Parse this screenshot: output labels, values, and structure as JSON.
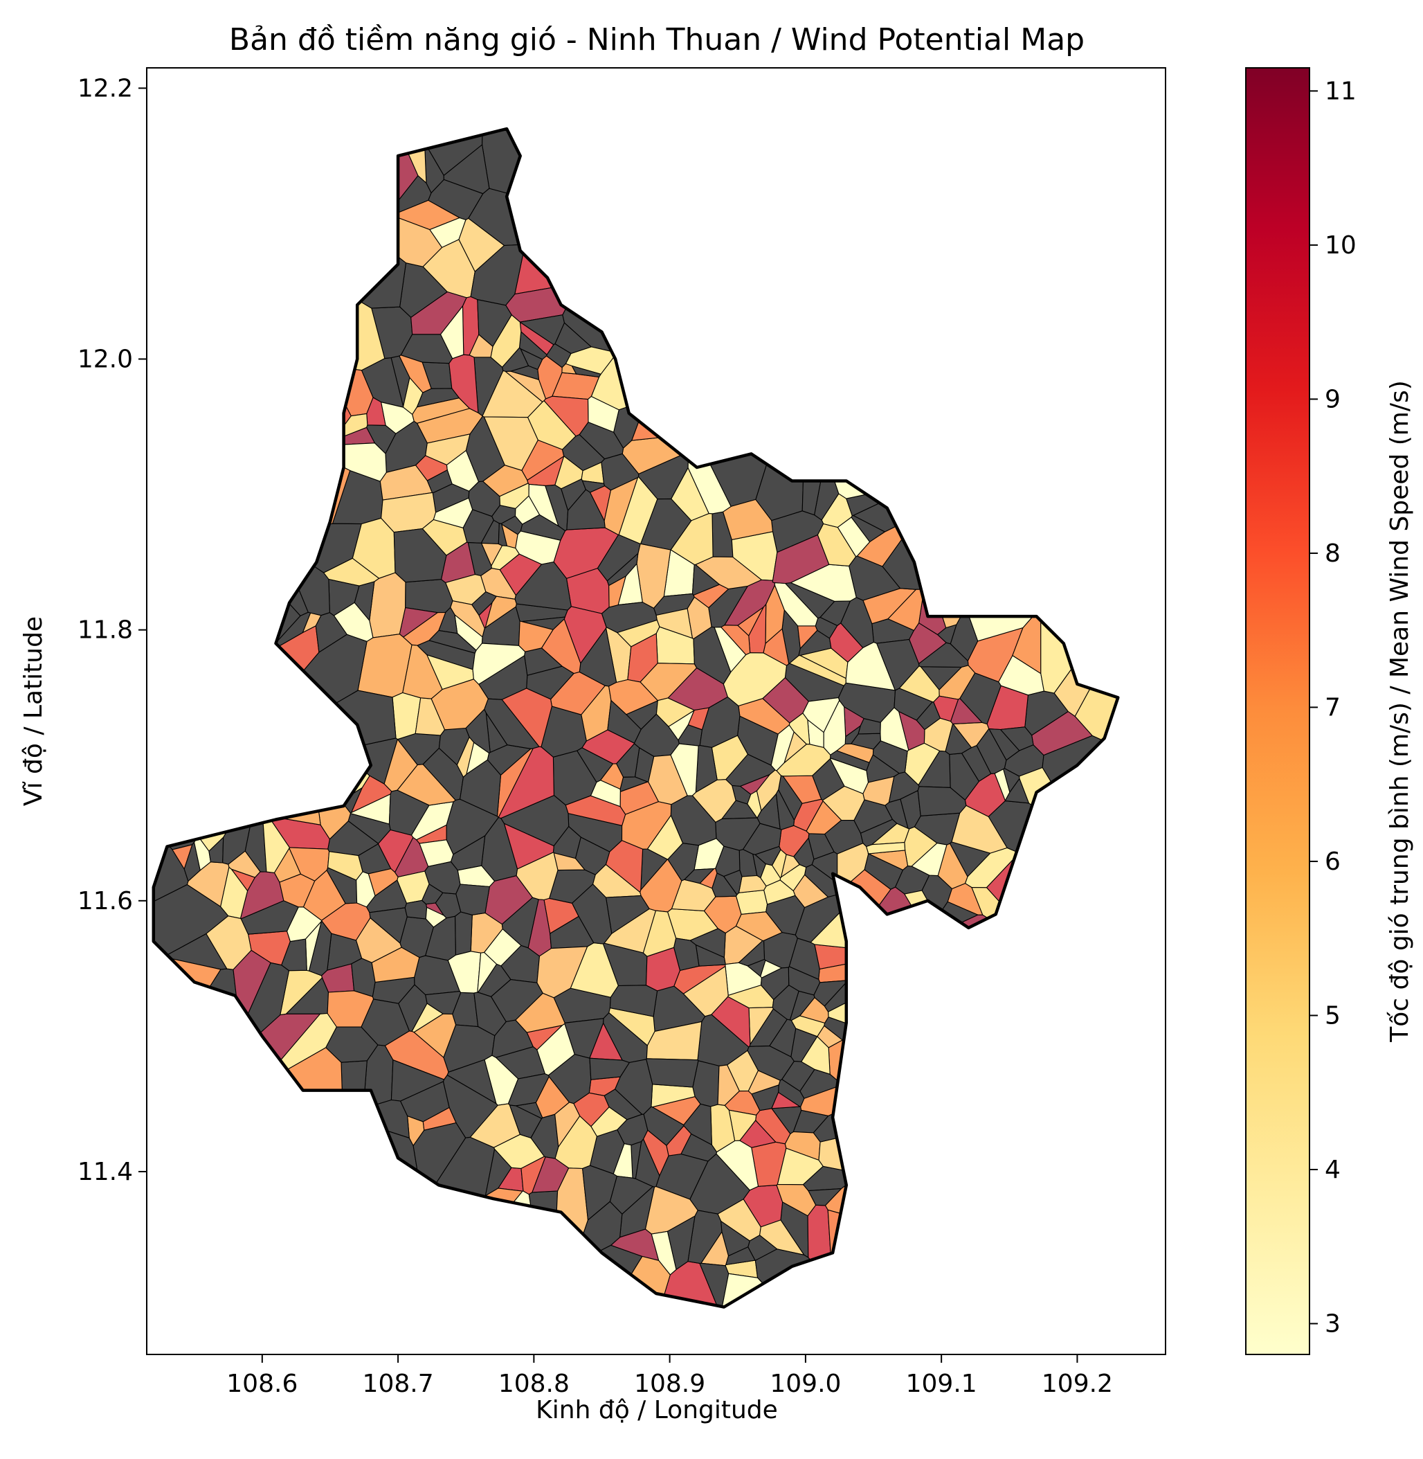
{
  "title": "Bản đồ tiềm năng gió - Ninh Thuan / Wind Potential Map",
  "axes": {
    "xlabel": "Kinh độ / Longitude",
    "ylabel": "Vĩ độ / Latitude",
    "xlim": [
      108.515,
      109.265
    ],
    "ylim": [
      11.265,
      12.215
    ],
    "xticks": [
      "108.6",
      "108.7",
      "108.8",
      "108.9",
      "109.0",
      "109.1",
      "109.2"
    ],
    "yticks": [
      "11.4",
      "11.6",
      "11.8",
      "12.0",
      "12.2"
    ]
  },
  "colorbar": {
    "label": "Tốc độ gió trung bình (m/s) / Mean Wind Speed (m/s)",
    "ticks": [
      "3",
      "4",
      "5",
      "6",
      "7",
      "8",
      "9",
      "10",
      "11"
    ],
    "range": [
      2.8,
      11.15
    ],
    "colormap": "YlOrRd",
    "colors": [
      "#ffffcc",
      "#ffeda0",
      "#fed976",
      "#feb24c",
      "#fd8d3c",
      "#fc4e2a",
      "#e31a1c",
      "#bd0026",
      "#800026"
    ]
  },
  "chart_data": {
    "type": "heatmap",
    "title": "Bản đồ tiềm năng gió - Ninh Thuan / Wind Potential Map",
    "xlabel": "Kinh độ / Longitude",
    "ylabel": "Vĩ độ / Latitude",
    "x_range": [
      108.515,
      109.265
    ],
    "y_range": [
      11.265,
      12.215
    ],
    "value_label": "Tốc độ gió trung bình (m/s) / Mean Wind Speed (m/s)",
    "value_range": [
      2.8,
      11.15
    ],
    "no_data_color": "#4a4a4a",
    "region_outline": [
      [
        108.7,
        12.15
      ],
      [
        108.74,
        12.16
      ],
      [
        108.78,
        12.17
      ],
      [
        108.79,
        12.15
      ],
      [
        108.78,
        12.12
      ],
      [
        108.79,
        12.08
      ],
      [
        108.81,
        12.06
      ],
      [
        108.82,
        12.04
      ],
      [
        108.85,
        12.02
      ],
      [
        108.86,
        12.0
      ],
      [
        108.87,
        11.96
      ],
      [
        108.92,
        11.92
      ],
      [
        108.96,
        11.93
      ],
      [
        108.99,
        11.91
      ],
      [
        109.03,
        11.91
      ],
      [
        109.06,
        11.89
      ],
      [
        109.08,
        11.85
      ],
      [
        109.09,
        11.81
      ],
      [
        109.13,
        11.81
      ],
      [
        109.17,
        11.81
      ],
      [
        109.19,
        11.79
      ],
      [
        109.2,
        11.76
      ],
      [
        109.23,
        11.75
      ],
      [
        109.22,
        11.72
      ],
      [
        109.2,
        11.7
      ],
      [
        109.17,
        11.68
      ],
      [
        109.16,
        11.65
      ],
      [
        109.15,
        11.62
      ],
      [
        109.14,
        11.59
      ],
      [
        109.12,
        11.58
      ],
      [
        109.09,
        11.6
      ],
      [
        109.06,
        11.59
      ],
      [
        109.04,
        11.61
      ],
      [
        109.02,
        11.62
      ],
      [
        109.03,
        11.57
      ],
      [
        109.03,
        11.51
      ],
      [
        109.02,
        11.44
      ],
      [
        109.03,
        11.39
      ],
      [
        109.02,
        11.34
      ],
      [
        108.99,
        11.33
      ],
      [
        108.94,
        11.3
      ],
      [
        108.89,
        11.31
      ],
      [
        108.85,
        11.34
      ],
      [
        108.82,
        11.37
      ],
      [
        108.77,
        11.38
      ],
      [
        108.73,
        11.39
      ],
      [
        108.7,
        11.41
      ],
      [
        108.68,
        11.46
      ],
      [
        108.63,
        11.46
      ],
      [
        108.6,
        11.5
      ],
      [
        108.58,
        11.53
      ],
      [
        108.55,
        11.54
      ],
      [
        108.52,
        11.57
      ],
      [
        108.52,
        11.61
      ],
      [
        108.53,
        11.64
      ],
      [
        108.57,
        11.65
      ],
      [
        108.61,
        11.66
      ],
      [
        108.66,
        11.67
      ],
      [
        108.68,
        11.7
      ],
      [
        108.67,
        11.73
      ],
      [
        108.64,
        11.76
      ],
      [
        108.61,
        11.79
      ],
      [
        108.62,
        11.82
      ],
      [
        108.64,
        11.85
      ],
      [
        108.65,
        11.88
      ],
      [
        108.66,
        11.92
      ],
      [
        108.66,
        11.96
      ],
      [
        108.67,
        12.0
      ],
      [
        108.67,
        12.04
      ],
      [
        108.7,
        12.07
      ],
      [
        108.7,
        12.11
      ],
      [
        108.7,
        12.15
      ]
    ],
    "cells_note": "Region subdivided into roughly 700 Voronoi cells; each colored by mean wind speed (about 2.8 to 11 m/s) or dark gray where no value is shown."
  }
}
